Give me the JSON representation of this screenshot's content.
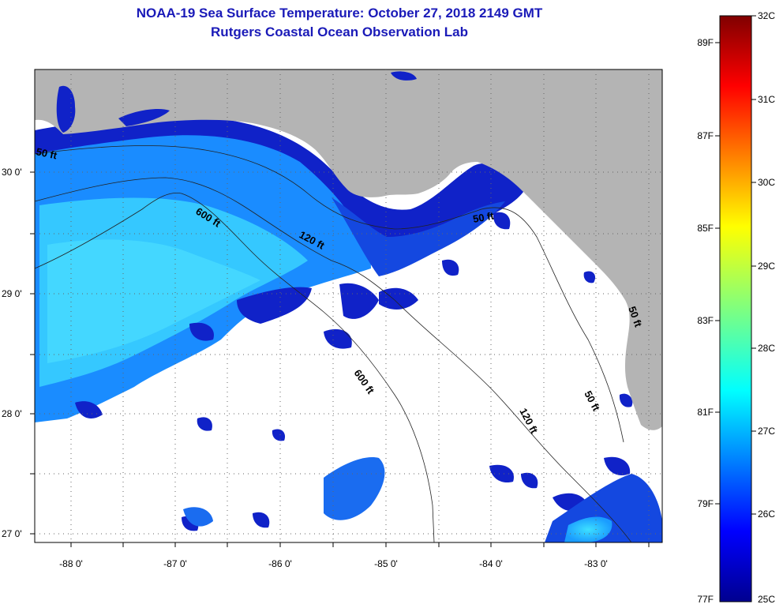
{
  "title": {
    "line1": "NOAA-19 Sea Surface Temperature:  October 27, 2018 2149 GMT",
    "line2": "Rutgers Coastal Ocean Observation Lab"
  },
  "map": {
    "lat_labels": [
      "30 0'",
      "29 0'",
      "28 0'",
      "27 0'"
    ],
    "lon_labels": [
      "-88 0'",
      "-87 0'",
      "-86 0'",
      "-85 0'",
      "-84 0'",
      "-83 0'"
    ],
    "contour_labels": [
      "50 ft",
      "600 ft",
      "120 ft",
      "50 ft",
      "600 ft",
      "120 ft",
      "50 ft",
      "50 ft"
    ],
    "colors": {
      "land": "#b4b4b4",
      "no_data": "#ffffff",
      "nearshore_water": "#1022c8",
      "offshore_water": "#1a8cff",
      "warmest_water": "#3de0ff"
    }
  },
  "colorbar": {
    "fahrenheit_labels": [
      "89F",
      "87F",
      "85F",
      "83F",
      "81F",
      "79F",
      "77F"
    ],
    "celsius_labels": [
      "32C",
      "31C",
      "30C",
      "29C",
      "28C",
      "27C",
      "26C",
      "25C"
    ]
  }
}
